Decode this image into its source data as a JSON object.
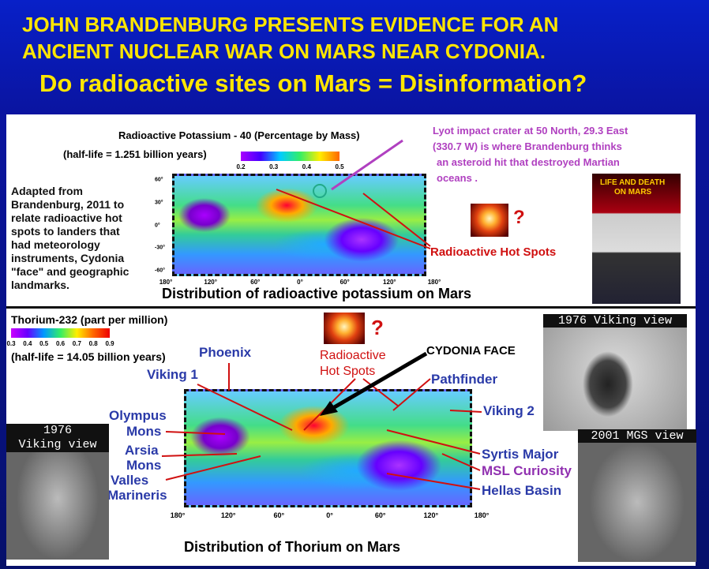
{
  "header": {
    "line1": "JOHN BRANDENBURG PRESENTS EVIDENCE FOR AN",
    "line2": "ANCIENT NUCLEAR WAR ON MARS NEAR CYDONIA.",
    "question": "Do radioactive sites on Mars = Disinformation?"
  },
  "potassium": {
    "title": "Radioactive Potassium - 40 (Percentage by Mass)",
    "half_life": "(half-life = 1.251 billion years)",
    "scale_labels": [
      "0.2",
      "0.3",
      "0.4",
      "0.5"
    ],
    "note_lines": [
      "Adapted from",
      "Brandenburg, 2011 to",
      "relate radioactive hot",
      "spots to landers that",
      "had meteorology",
      "instruments, Cydonia",
      "\"face\" and geographic",
      "landmarks."
    ],
    "lyot_lines": [
      "Lyot impact crater at  50 North, 29.3 East",
      "(330.7 W)  is where  Brandenburg thinks",
      "an asteroid hit that destroyed Martian",
      "oceans ."
    ],
    "question_mark": "?",
    "hot_spots": "Radioactive Hot Spots",
    "axis_labels": [
      "180°",
      "120°",
      "60°",
      "0°",
      "60°",
      "120°",
      "180°"
    ],
    "lat_labels": [
      "60°",
      "30°",
      "0°",
      "-30°",
      "-60°"
    ],
    "book_title": [
      "LIFE AND DEATH",
      "ON MARS"
    ],
    "caption": "Distribution of radioactive potassium on Mars"
  },
  "thorium": {
    "title": "Thorium-232 (part per million)",
    "scale_labels": [
      "0.3",
      "0.4",
      "0.5",
      "0.6",
      "0.7",
      "0.8",
      "0.9"
    ],
    "half_life": "(half-life = 14.05 billion years)",
    "question_mark": "?",
    "hot_spots": [
      "Radioactive",
      "Hot Spots"
    ],
    "cydonia": "CYDONIA FACE",
    "labels": {
      "phoenix": "Phoenix",
      "viking1": "Viking 1",
      "olympus": [
        "Olympus",
        "Mons"
      ],
      "arsia": [
        "Arsia",
        "Mons"
      ],
      "valles": [
        "Valles",
        "Marineris"
      ],
      "pathfinder": "Pathfinder",
      "viking2": "Viking 2",
      "syrtis": "Syrtis Major",
      "msl": "MSL Curiosity",
      "hellas": "Hellas Basin"
    },
    "axis_labels": [
      "180°",
      "120°",
      "60°",
      "0°",
      "60°",
      "120°",
      "180°"
    ],
    "caption": "Distribution of Thorium on Mars",
    "viking_right": "1976 Viking view",
    "viking_left": [
      "1976",
      "Viking view"
    ],
    "mgs": "2001 MGS view"
  }
}
